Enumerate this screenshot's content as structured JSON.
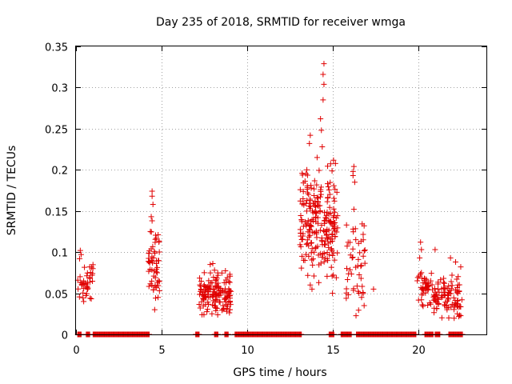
{
  "chart_data": {
    "type": "scatter",
    "title": "Day 235 of 2018, SRMTID for receiver wmga",
    "xlabel": "GPS time / hours",
    "ylabel": "SRMTID / TECUs",
    "xlim": [
      0,
      24
    ],
    "ylim": [
      0,
      0.35
    ],
    "xticks": [
      0,
      5,
      10,
      15,
      20
    ],
    "xtick_labels": [
      "0",
      "5",
      "10",
      "15",
      "20"
    ],
    "yticks": [
      0,
      0.05,
      0.1,
      0.15,
      0.2,
      0.25,
      0.3,
      0.35
    ],
    "ytick_labels": [
      "0",
      "0.05",
      "0.1",
      "0.15",
      "0.2",
      "0.25",
      "0.3",
      "0.35"
    ],
    "grid": true,
    "marker": "plus",
    "color": "#e00000",
    "zero_ranges": [
      [
        0.1,
        0.3
      ],
      [
        0.6,
        0.8
      ],
      [
        1.0,
        4.3
      ],
      [
        7.0,
        7.2
      ],
      [
        8.1,
        8.3
      ],
      [
        8.7,
        8.9
      ],
      [
        9.3,
        13.2
      ],
      [
        14.8,
        15.1
      ],
      [
        15.5,
        16.1
      ],
      [
        16.4,
        19.9
      ],
      [
        20.4,
        20.9
      ],
      [
        21.0,
        21.3
      ],
      [
        21.8,
        22.6
      ]
    ],
    "zero_step": 0.04,
    "clusters": [
      {
        "x_range": [
          0.1,
          1.0
        ],
        "center": 0.068,
        "spread": 0.012,
        "count": 40,
        "extras": [
          [
            0.25,
            0.102
          ],
          [
            0.3,
            0.097
          ],
          [
            0.8,
            0.082
          ],
          [
            0.45,
            0.04
          ]
        ]
      },
      {
        "x_range": [
          4.2,
          4.9
        ],
        "center": 0.085,
        "spread": 0.02,
        "count": 55,
        "extras": [
          [
            4.45,
            0.174
          ],
          [
            4.45,
            0.168
          ],
          [
            4.5,
            0.158
          ],
          [
            4.4,
            0.143
          ],
          [
            4.45,
            0.138
          ],
          [
            4.35,
            0.125
          ],
          [
            4.6,
            0.03
          ],
          [
            4.8,
            0.045
          ]
        ]
      },
      {
        "x_range": [
          7.2,
          9.1
        ],
        "center": 0.05,
        "spread": 0.012,
        "count": 150,
        "extras": [
          [
            7.85,
            0.085
          ],
          [
            8.0,
            0.086
          ],
          [
            8.1,
            0.078
          ],
          [
            7.5,
            0.075
          ],
          [
            7.95,
            0.025
          ],
          [
            8.6,
            0.035
          ],
          [
            9.0,
            0.03
          ]
        ]
      },
      {
        "x_range": [
          13.1,
          15.3
        ],
        "center": 0.135,
        "spread": 0.03,
        "count": 230,
        "extras": [
          [
            14.5,
            0.329
          ],
          [
            14.45,
            0.316
          ],
          [
            14.5,
            0.304
          ],
          [
            14.45,
            0.285
          ],
          [
            14.3,
            0.262
          ],
          [
            14.35,
            0.248
          ],
          [
            13.7,
            0.242
          ],
          [
            13.65,
            0.232
          ],
          [
            14.4,
            0.228
          ],
          [
            14.1,
            0.215
          ],
          [
            13.5,
            0.2
          ],
          [
            13.6,
            0.17
          ],
          [
            13.7,
            0.06
          ],
          [
            13.8,
            0.055
          ],
          [
            14.2,
            0.063
          ],
          [
            15.0,
            0.05
          ]
        ]
      },
      {
        "x_range": [
          15.8,
          17.0
        ],
        "center": 0.085,
        "spread": 0.025,
        "count": 45,
        "extras": [
          [
            16.25,
            0.204
          ],
          [
            16.2,
            0.198
          ],
          [
            16.2,
            0.193
          ],
          [
            16.3,
            0.185
          ],
          [
            16.25,
            0.152
          ],
          [
            16.2,
            0.128
          ],
          [
            16.85,
            0.132
          ],
          [
            16.8,
            0.115
          ],
          [
            16.8,
            0.095
          ],
          [
            16.7,
            0.045
          ],
          [
            16.85,
            0.035
          ],
          [
            17.4,
            0.055
          ]
        ]
      },
      {
        "x_range": [
          19.9,
          20.7
        ],
        "center": 0.06,
        "spread": 0.01,
        "count": 35,
        "extras": [
          [
            20.15,
            0.112
          ],
          [
            20.2,
            0.103
          ],
          [
            20.1,
            0.093
          ],
          [
            20.2,
            0.075
          ],
          [
            20.3,
            0.05
          ],
          [
            20.2,
            0.042
          ],
          [
            20.25,
            0.036
          ]
        ]
      },
      {
        "x_range": [
          20.7,
          22.6
        ],
        "center": 0.048,
        "spread": 0.012,
        "count": 100,
        "extras": [
          [
            21.0,
            0.103
          ],
          [
            21.9,
            0.093
          ],
          [
            22.2,
            0.088
          ],
          [
            22.5,
            0.082
          ],
          [
            21.5,
            0.068
          ],
          [
            21.8,
            0.02
          ],
          [
            22.3,
            0.025
          ],
          [
            22.1,
            0.035
          ],
          [
            21.7,
            0.03
          ]
        ]
      }
    ]
  }
}
